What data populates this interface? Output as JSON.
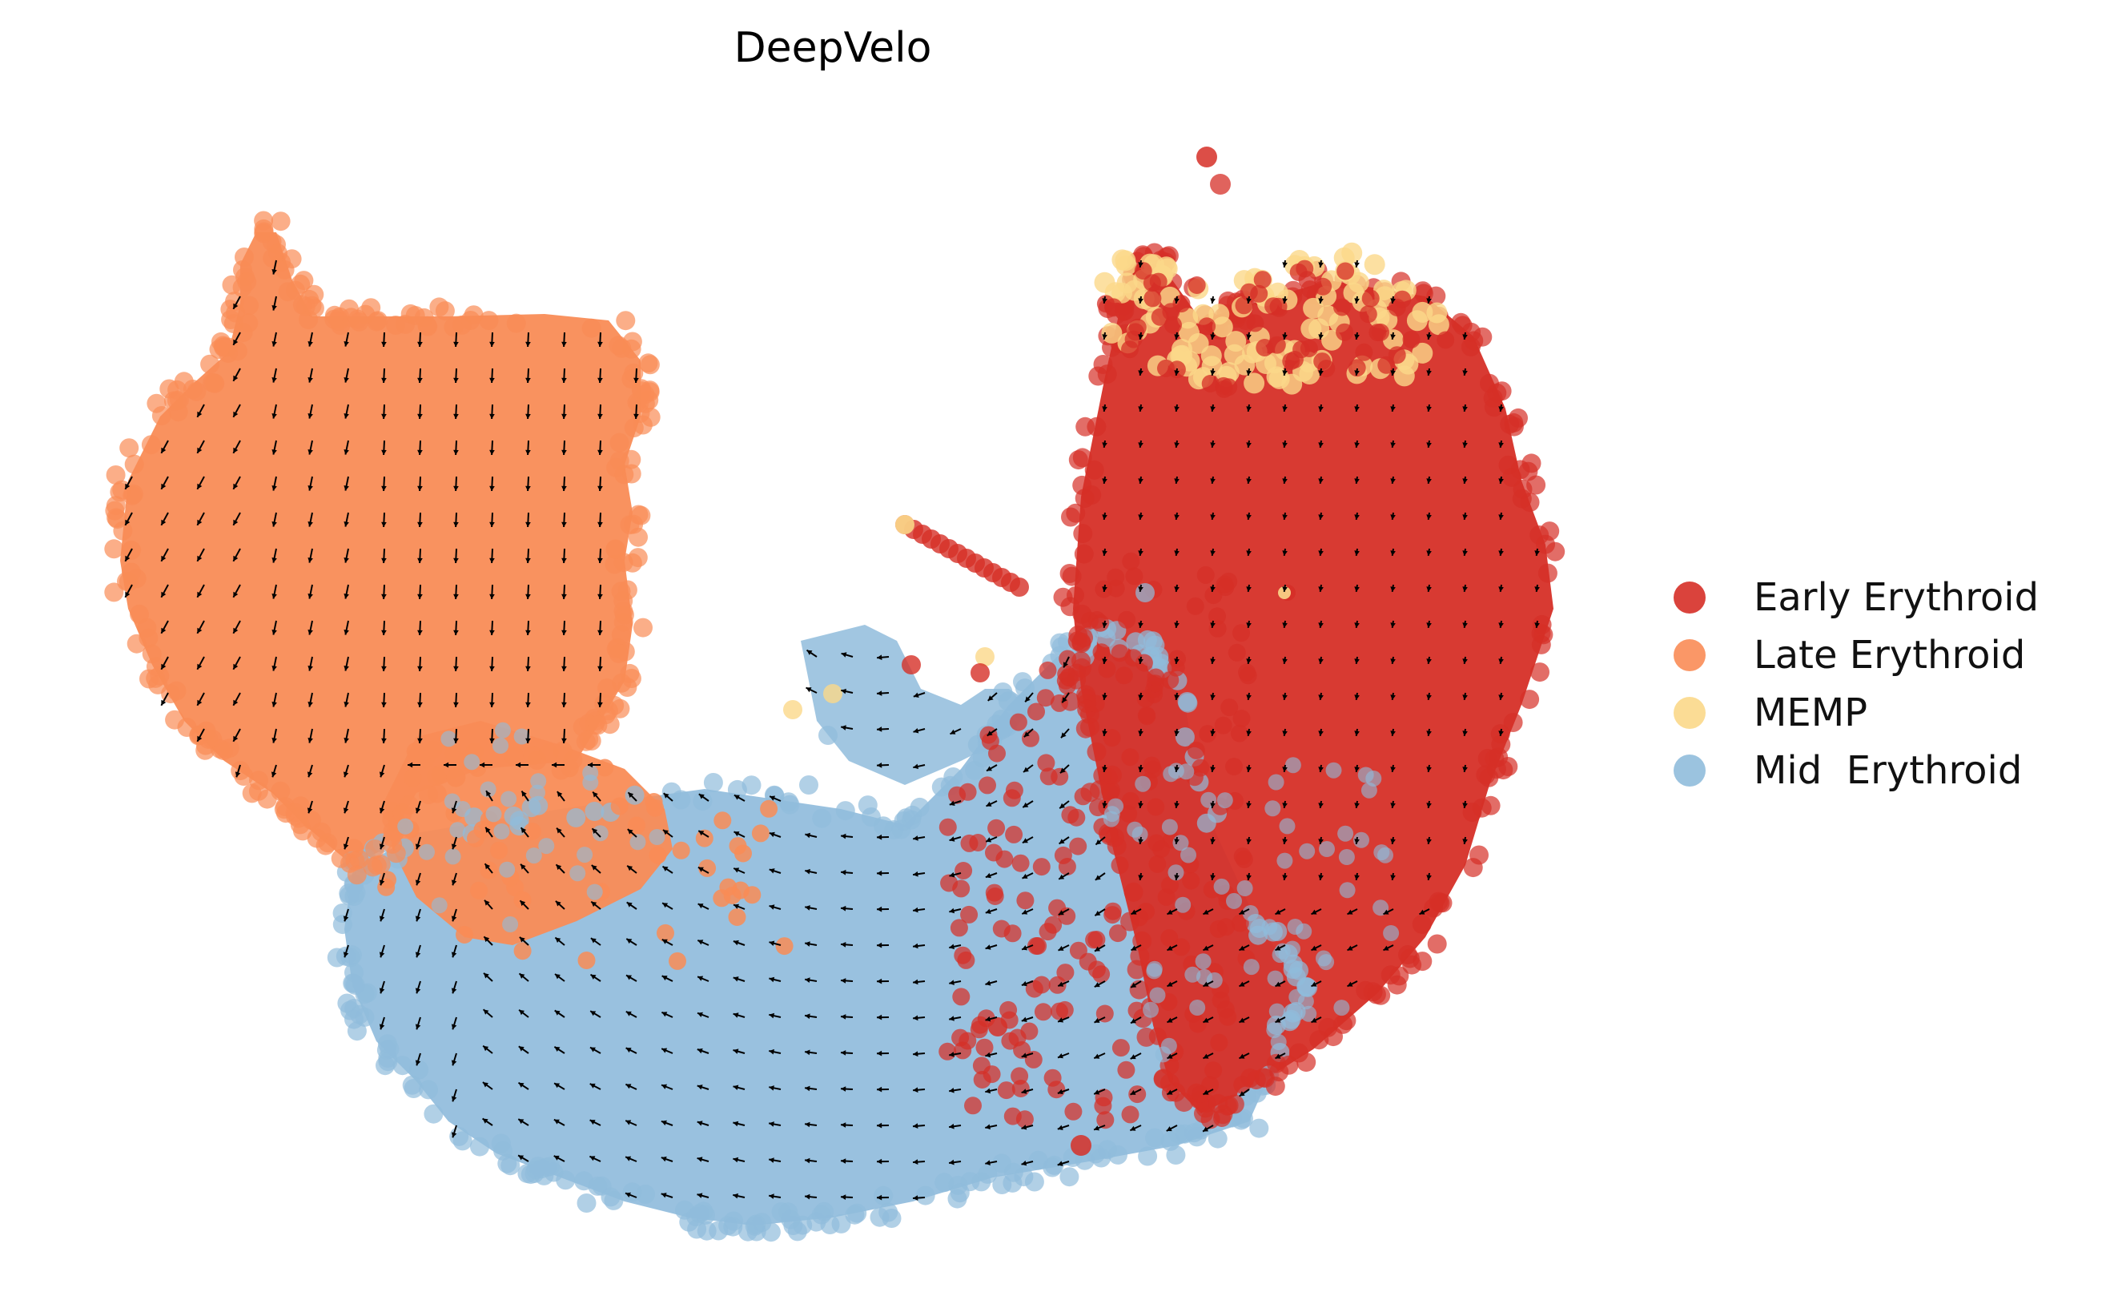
{
  "chart_data": {
    "type": "scatter",
    "title": "DeepVelo",
    "xlabel": "",
    "ylabel": "",
    "axes_visible": false,
    "grid": false,
    "legend_position": "right",
    "overlay": "velocity-stream-arrows",
    "series": [
      {
        "name": "Early Erythroid",
        "color": "#d62f27",
        "region": "right arc, upper-right"
      },
      {
        "name": "Late Erythroid",
        "color": "#f98c56",
        "region": "upper-left block"
      },
      {
        "name": "MEMP",
        "color": "#fbd88a",
        "region": "top edge of right arc"
      },
      {
        "name": "Mid  Erythroid",
        "color": "#90bcdc",
        "region": "bottom arc"
      }
    ]
  },
  "legend": {
    "items": [
      {
        "label": "Early Erythroid",
        "color": "#d62f27"
      },
      {
        "label": "Late Erythroid",
        "color": "#f98c56"
      },
      {
        "label": "MEMP",
        "color": "#fbd88a"
      },
      {
        "label": "Mid  Erythroid",
        "color": "#90bcdc"
      }
    ]
  }
}
